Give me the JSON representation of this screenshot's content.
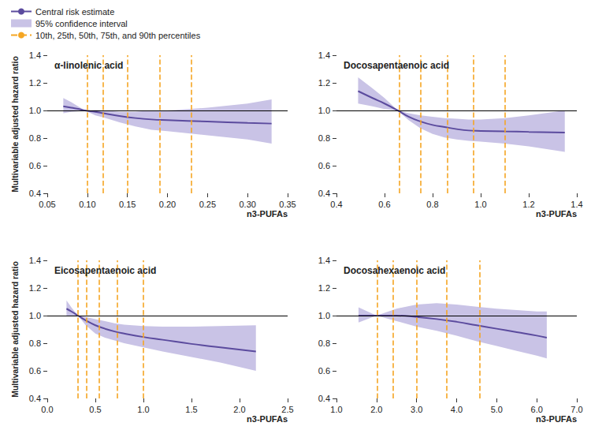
{
  "chart_data": [
    {
      "type": "line",
      "title": "α-linolenic acid",
      "x_label": "n3-PUFAs",
      "y_label": "Multivariable adjusted hazard ratio",
      "x": [
        0.07,
        0.08,
        0.09,
        0.097,
        0.11,
        0.12,
        0.14,
        0.16,
        0.18,
        0.2,
        0.25,
        0.3,
        0.33
      ],
      "series": [
        {
          "name": "Central risk estimate",
          "type": "line",
          "color": "#5b4b9e",
          "values": [
            1.03,
            1.02,
            1.01,
            1.0,
            0.99,
            0.98,
            0.96,
            0.945,
            0.935,
            0.93,
            0.92,
            0.91,
            0.905
          ]
        },
        {
          "name": "95% confidence interval",
          "type": "band",
          "color": "#c9c3e6",
          "lower": [
            0.98,
            0.99,
            0.995,
            1.0,
            0.965,
            0.95,
            0.915,
            0.885,
            0.86,
            0.85,
            0.82,
            0.79,
            0.76
          ],
          "upper": [
            1.09,
            1.06,
            1.025,
            1.0,
            1.005,
            1.0,
            0.99,
            0.99,
            1.0,
            1.0,
            1.02,
            1.05,
            1.08
          ]
        }
      ],
      "percentiles": {
        "name": "10th, 25th, 50th, 75th, and 90th percentiles",
        "color": "#f5a623",
        "line_style": "dashed",
        "values": [
          0.097,
          0.117,
          0.148,
          0.188,
          0.227
        ]
      },
      "reference_line": {
        "value": 1,
        "color": "#000000"
      },
      "xlim": [
        0.05,
        0.35
      ],
      "xticks": [
        0.05,
        {
          "value": 0.1,
          "label": "0.10"
        },
        0.15,
        {
          "value": 0.2,
          "label": "0.20"
        },
        0.25,
        {
          "value": 0.3,
          "label": "0.30"
        },
        0.35
      ],
      "ylim": [
        0.4,
        1.4
      ],
      "yticks": [
        0.4,
        0.6,
        0.8,
        {
          "value": 1,
          "label": "1.0"
        },
        1.2,
        1.4
      ],
      "grid": false
    },
    {
      "type": "line",
      "title": "Docosapentaenoic acid",
      "x_label": "n3-PUFAs",
      "x": [
        0.49,
        0.55,
        0.6,
        0.655,
        0.7,
        0.75,
        0.8,
        0.85,
        0.9,
        0.95,
        1.0,
        1.1,
        1.2,
        1.35
      ],
      "series": [
        {
          "name": "Central risk estimate",
          "type": "line",
          "color": "#5b4b9e",
          "values": [
            1.14,
            1.09,
            1.05,
            1.0,
            0.955,
            0.92,
            0.895,
            0.88,
            0.865,
            0.855,
            0.852,
            0.848,
            0.845,
            0.84
          ]
        },
        {
          "name": "95% confidence interval",
          "type": "band",
          "color": "#c9c3e6",
          "lower": [
            1.05,
            1.03,
            1.01,
            1.0,
            0.93,
            0.87,
            0.83,
            0.805,
            0.79,
            0.78,
            0.775,
            0.76,
            0.74,
            0.7
          ],
          "upper": [
            1.24,
            1.16,
            1.09,
            1.0,
            0.98,
            0.965,
            0.955,
            0.945,
            0.94,
            0.935,
            0.935,
            0.945,
            0.965,
            1.0
          ]
        }
      ],
      "percentiles": {
        "name": "10th, 25th, 50th, 75th, and 90th percentiles",
        "color": "#f5a623",
        "line_style": "dashed",
        "values": [
          0.655,
          0.75,
          0.865,
          0.975,
          1.1
        ]
      },
      "reference_line": {
        "value": 1,
        "color": "#000000"
      },
      "xlim": [
        0.4,
        1.4
      ],
      "xticks": [
        0.4,
        0.6,
        0.8,
        {
          "value": 1,
          "label": "1.0"
        },
        1.2,
        1.4
      ],
      "ylim": [
        0.4,
        1.4
      ],
      "yticks": [
        0.4,
        0.6,
        0.8,
        {
          "value": 1,
          "label": "1.0"
        },
        1.2,
        1.4
      ],
      "grid": false
    },
    {
      "type": "line",
      "title": "Eicosapentaenoic acid",
      "x_label": "n3-PUFAs",
      "y_label": "Multivariable adjusted hazard ratio",
      "x": [
        0.2,
        0.25,
        0.32,
        0.4,
        0.5,
        0.6,
        0.7,
        0.8,
        1.0,
        1.2,
        1.5,
        1.8,
        2.17
      ],
      "series": [
        {
          "name": "Central risk estimate",
          "type": "line",
          "color": "#5b4b9e",
          "values": [
            1.05,
            1.03,
            1.0,
            0.965,
            0.93,
            0.905,
            0.885,
            0.87,
            0.845,
            0.825,
            0.795,
            0.77,
            0.74
          ]
        },
        {
          "name": "95% confidence interval",
          "type": "band",
          "color": "#c9c3e6",
          "lower": [
            1.0,
            0.995,
            1.0,
            0.93,
            0.87,
            0.84,
            0.82,
            0.8,
            0.77,
            0.74,
            0.7,
            0.66,
            0.6
          ],
          "upper": [
            1.11,
            1.06,
            1.0,
            0.99,
            0.975,
            0.96,
            0.945,
            0.935,
            0.925,
            0.92,
            0.92,
            0.925,
            0.93
          ]
        }
      ],
      "percentiles": {
        "name": "10th, 25th, 50th, 75th, and 90th percentiles",
        "color": "#f5a623",
        "line_style": "dashed",
        "values": [
          0.32,
          0.41,
          0.54,
          0.73,
          1.0
        ]
      },
      "reference_line": {
        "value": 1,
        "color": "#000000"
      },
      "xlim": [
        0,
        2.5
      ],
      "xticks": [
        {
          "value": 0,
          "label": "0.0"
        },
        0.5,
        {
          "value": 1,
          "label": "1.0"
        },
        1.5,
        {
          "value": 2,
          "label": "2.0"
        },
        2.5
      ],
      "ylim": [
        0.4,
        1.4
      ],
      "yticks": [
        0.4,
        0.6,
        0.8,
        {
          "value": 1,
          "label": "1.0"
        },
        1.2,
        1.4
      ],
      "grid": false
    },
    {
      "type": "line",
      "title": "Docosahexaenoic acid",
      "x_label": "n3-PUFAs",
      "x": [
        1.55,
        2.0,
        2.5,
        3.0,
        3.5,
        4.0,
        4.5,
        5.0,
        5.5,
        6.0,
        6.25
      ],
      "series": [
        {
          "name": "Central risk estimate",
          "type": "line",
          "color": "#5b4b9e",
          "values": [
            1.0,
            1.0,
            1.0,
            0.99,
            0.975,
            0.955,
            0.93,
            0.905,
            0.88,
            0.855,
            0.84
          ]
        },
        {
          "name": "95% confidence interval",
          "type": "band",
          "color": "#c9c3e6",
          "lower": [
            0.95,
            1.0,
            0.96,
            0.92,
            0.89,
            0.855,
            0.815,
            0.78,
            0.745,
            0.71,
            0.69
          ],
          "upper": [
            1.06,
            1.0,
            1.05,
            1.08,
            1.09,
            1.08,
            1.065,
            1.05,
            1.04,
            1.03,
            1.03
          ]
        }
      ],
      "percentiles": {
        "name": "10th, 25th, 50th, 75th, and 90th percentiles",
        "color": "#f5a623",
        "line_style": "dashed",
        "values": [
          2.02,
          2.42,
          3.0,
          3.75,
          4.58
        ]
      },
      "reference_line": {
        "value": 1,
        "color": "#000000"
      },
      "xlim": [
        1,
        7
      ],
      "xticks": [
        {
          "value": 1,
          "label": "1.0"
        },
        {
          "value": 2,
          "label": "2.0"
        },
        {
          "value": 3,
          "label": "3.0"
        },
        {
          "value": 4,
          "label": "4.0"
        },
        {
          "value": 5,
          "label": "5.0"
        },
        {
          "value": 6,
          "label": "6.0"
        },
        {
          "value": 7,
          "label": "7.0"
        }
      ],
      "ylim": [
        0.4,
        1.4
      ],
      "yticks": [
        0.4,
        0.6,
        0.8,
        {
          "value": 1,
          "label": "1.0"
        },
        1.2,
        1.4
      ],
      "grid": false
    }
  ]
}
